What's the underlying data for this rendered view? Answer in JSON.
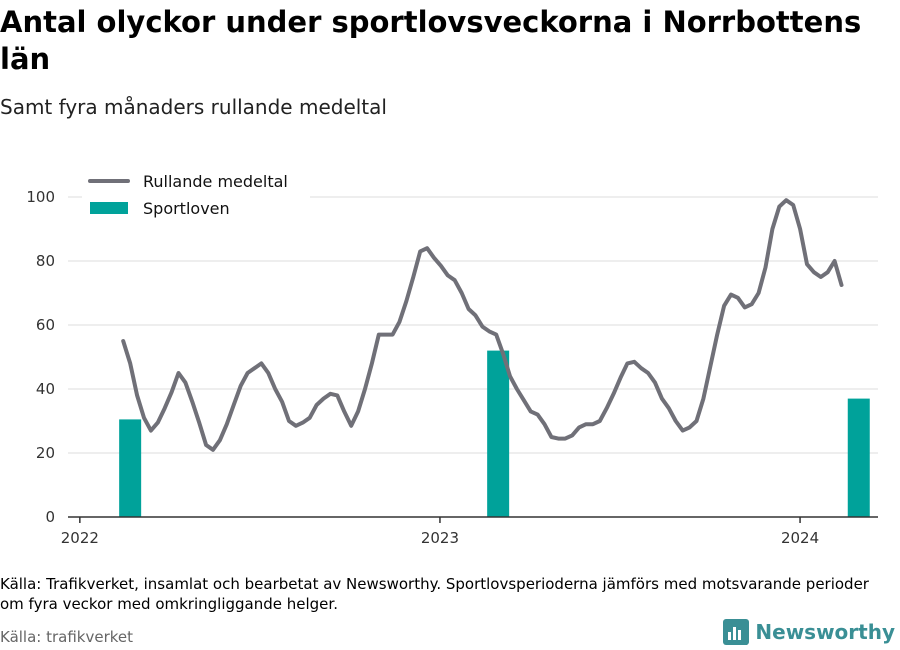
{
  "title": "Antal olyckor under sportlovsveckorna i Norrbottens län",
  "subtitle": "Samt fyra månaders rullande medeltal",
  "note": "Källa: Trafikverket, insamlat och bearbetat av Newsworthy. Sportlovsperioderna jämförs med motsvarande perioder om fyra veckor med omkringliggande helger.",
  "source": "Källa: trafikverket",
  "brand": {
    "name": "Newsworthy",
    "icon": "bar-chart-logo-icon",
    "color": "#3a8f95"
  },
  "chart_data": {
    "type": "line+bar",
    "ylim": [
      0,
      100
    ],
    "yticks": [
      0,
      20,
      40,
      60,
      80,
      100
    ],
    "xlim": [
      "2021-12-20",
      "2024-03-20"
    ],
    "xticks": [
      {
        "value": "2022-01-01",
        "label": "2022"
      },
      {
        "value": "2023-01-01",
        "label": "2023"
      },
      {
        "value": "2024-01-01",
        "label": "2024"
      }
    ],
    "grid": true,
    "legend": {
      "position": "top-left"
    },
    "colors": {
      "line": "#707078",
      "bar": "#00a29a",
      "grid": "#dddddd",
      "axis": "#333333"
    },
    "series": [
      {
        "name": "Rullande medeltal",
        "type": "line",
        "points": [
          [
            "2022-02-14",
            55
          ],
          [
            "2022-02-21",
            48
          ],
          [
            "2022-02-28",
            38
          ],
          [
            "2022-03-07",
            31
          ],
          [
            "2022-03-14",
            27
          ],
          [
            "2022-03-21",
            29.5
          ],
          [
            "2022-03-28",
            34
          ],
          [
            "2022-04-04",
            39
          ],
          [
            "2022-04-11",
            45
          ],
          [
            "2022-04-18",
            42
          ],
          [
            "2022-04-25",
            36
          ],
          [
            "2022-05-02",
            29.5
          ],
          [
            "2022-05-09",
            22.5
          ],
          [
            "2022-05-16",
            21
          ],
          [
            "2022-05-23",
            24
          ],
          [
            "2022-05-30",
            29
          ],
          [
            "2022-06-06",
            35
          ],
          [
            "2022-06-13",
            41
          ],
          [
            "2022-06-20",
            45
          ],
          [
            "2022-06-27",
            46.5
          ],
          [
            "2022-07-04",
            48
          ],
          [
            "2022-07-11",
            45
          ],
          [
            "2022-07-18",
            40
          ],
          [
            "2022-07-25",
            36
          ],
          [
            "2022-08-01",
            30
          ],
          [
            "2022-08-08",
            28.5
          ],
          [
            "2022-08-15",
            29.5
          ],
          [
            "2022-08-22",
            31
          ],
          [
            "2022-08-29",
            35
          ],
          [
            "2022-09-05",
            37
          ],
          [
            "2022-09-12",
            38.5
          ],
          [
            "2022-09-19",
            38
          ],
          [
            "2022-09-26",
            33
          ],
          [
            "2022-10-03",
            28.5
          ],
          [
            "2022-10-10",
            33
          ],
          [
            "2022-10-17",
            40
          ],
          [
            "2022-10-24",
            48
          ],
          [
            "2022-10-31",
            57
          ],
          [
            "2022-11-07",
            57
          ],
          [
            "2022-11-14",
            57
          ],
          [
            "2022-11-21",
            61
          ],
          [
            "2022-11-28",
            67.5
          ],
          [
            "2022-12-05",
            75
          ],
          [
            "2022-12-12",
            83
          ],
          [
            "2022-12-19",
            84
          ],
          [
            "2022-12-26",
            81
          ],
          [
            "2023-01-02",
            78.5
          ],
          [
            "2023-01-09",
            75.5
          ],
          [
            "2023-01-16",
            74
          ],
          [
            "2023-01-23",
            70
          ],
          [
            "2023-01-30",
            65
          ],
          [
            "2023-02-06",
            63
          ],
          [
            "2023-02-13",
            59.5
          ],
          [
            "2023-02-20",
            58
          ],
          [
            "2023-02-27",
            57
          ],
          [
            "2023-03-06",
            51
          ],
          [
            "2023-03-13",
            44
          ],
          [
            "2023-03-20",
            40
          ],
          [
            "2023-03-27",
            36.5
          ],
          [
            "2023-04-03",
            33
          ],
          [
            "2023-04-10",
            32
          ],
          [
            "2023-04-17",
            29
          ],
          [
            "2023-04-24",
            25
          ],
          [
            "2023-05-01",
            24.5
          ],
          [
            "2023-05-08",
            24.5
          ],
          [
            "2023-05-15",
            25.5
          ],
          [
            "2023-05-22",
            28
          ],
          [
            "2023-05-29",
            29
          ],
          [
            "2023-06-05",
            29
          ],
          [
            "2023-06-12",
            30
          ],
          [
            "2023-06-19",
            34
          ],
          [
            "2023-06-26",
            38.5
          ],
          [
            "2023-07-03",
            43.5
          ],
          [
            "2023-07-10",
            48
          ],
          [
            "2023-07-17",
            48.5
          ],
          [
            "2023-07-24",
            46.5
          ],
          [
            "2023-07-31",
            45
          ],
          [
            "2023-08-07",
            42
          ],
          [
            "2023-08-14",
            37
          ],
          [
            "2023-08-21",
            34
          ],
          [
            "2023-08-28",
            30
          ],
          [
            "2023-09-04",
            27
          ],
          [
            "2023-09-11",
            28
          ],
          [
            "2023-09-18",
            30
          ],
          [
            "2023-09-25",
            37
          ],
          [
            "2023-10-02",
            47
          ],
          [
            "2023-10-09",
            57
          ],
          [
            "2023-10-16",
            66
          ],
          [
            "2023-10-23",
            69.5
          ],
          [
            "2023-10-30",
            68.5
          ],
          [
            "2023-11-06",
            65.5
          ],
          [
            "2023-11-13",
            66.5
          ],
          [
            "2023-11-20",
            70
          ],
          [
            "2023-11-27",
            78
          ],
          [
            "2023-12-04",
            90
          ],
          [
            "2023-12-11",
            97
          ],
          [
            "2023-12-18",
            99
          ],
          [
            "2023-12-25",
            97.5
          ],
          [
            "2024-01-01",
            90
          ],
          [
            "2024-01-08",
            79
          ],
          [
            "2024-01-15",
            76.5
          ],
          [
            "2024-01-22",
            75
          ],
          [
            "2024-01-29",
            76.5
          ],
          [
            "2024-02-05",
            80
          ],
          [
            "2024-02-12",
            72.5
          ]
        ]
      },
      {
        "name": "Sportloven",
        "type": "bar",
        "points": [
          [
            "2022-02-07",
            "2022-03-07",
            30.5
          ],
          [
            "2023-02-15",
            "2023-03-15",
            52
          ],
          [
            "2024-02-15",
            "2024-03-15",
            37
          ]
        ]
      }
    ]
  }
}
